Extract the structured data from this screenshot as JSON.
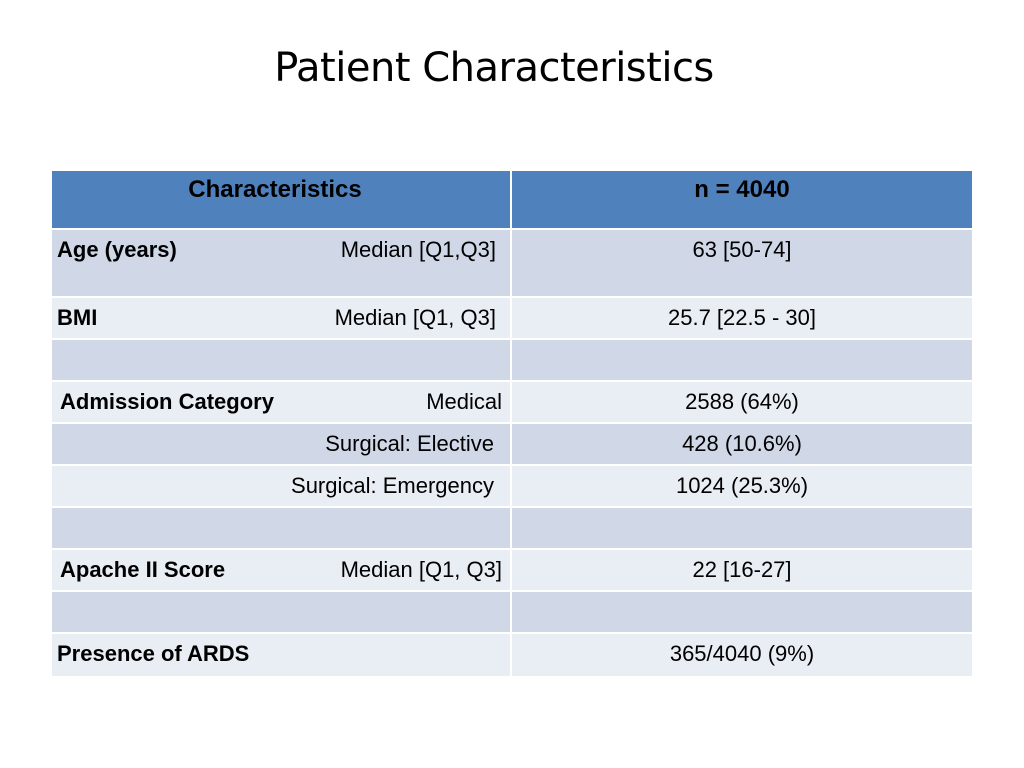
{
  "title": "Patient Characteristics",
  "table": {
    "headers": [
      "Characteristics",
      "n = 4040"
    ],
    "rows": [
      {
        "label": "Age (years)",
        "sublabel": "Median [Q1,Q3]",
        "value": "63 [50-74]"
      },
      {
        "label": "BMI",
        "sublabel": "Median [Q1, Q3]",
        "value": "25.7 [22.5 - 30]"
      },
      {
        "label": "",
        "sublabel": "",
        "value": ""
      },
      {
        "label": "Admission Category",
        "sublabel": "Medical",
        "value": "2588 (64%)"
      },
      {
        "label": "",
        "sublabel": "Surgical: Elective",
        "value": "428 (10.6%)"
      },
      {
        "label": "",
        "sublabel": "Surgical: Emergency",
        "value": "1024 (25.3%)"
      },
      {
        "label": "",
        "sublabel": "",
        "value": ""
      },
      {
        "label": "Apache II Score",
        "sublabel": "Median [Q1, Q3]",
        "value": "22 [16-27]"
      },
      {
        "label": "",
        "sublabel": "",
        "value": ""
      },
      {
        "label": "Presence of ARDS",
        "sublabel": "",
        "value": "365/4040 (9%)"
      }
    ]
  },
  "colors": {
    "header_bg": "#4f81bd",
    "row_dark": "#d0d8e8",
    "row_light": "#e9edf4"
  }
}
